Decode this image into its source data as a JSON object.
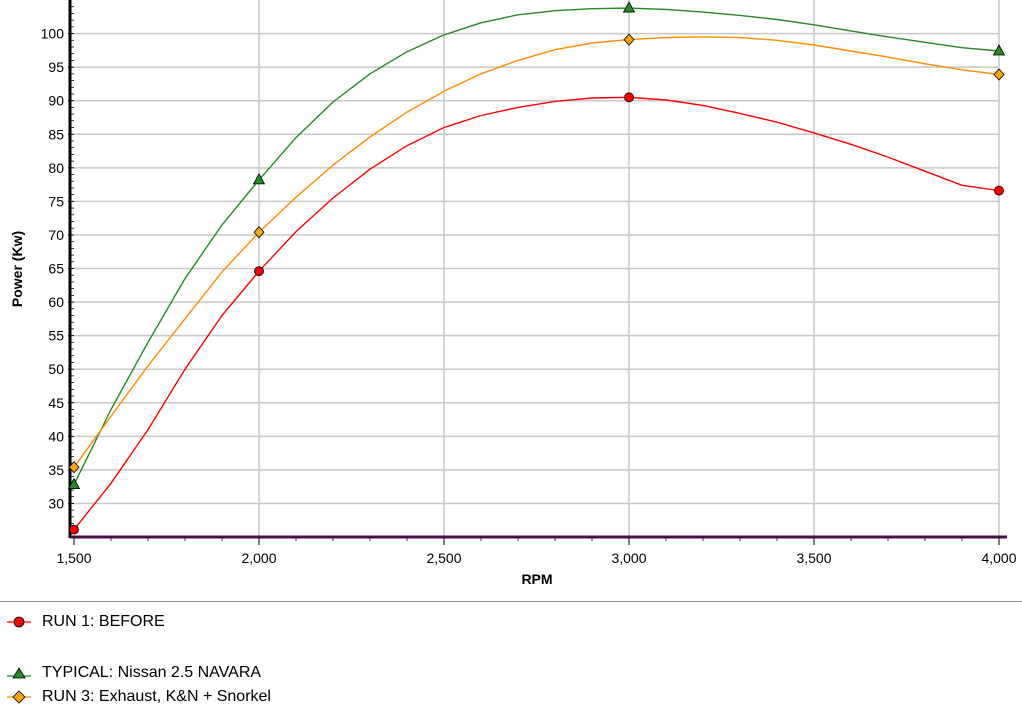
{
  "chart_data": {
    "type": "line",
    "title": "",
    "xlabel": "RPM",
    "ylabel": "Power (Kw)",
    "xlim": [
      1500,
      4000
    ],
    "ylim": [
      25,
      105
    ],
    "x_ticks": [
      1500,
      2000,
      2500,
      3000,
      3500,
      4000
    ],
    "x_tick_labels": [
      "1,500",
      "2,000",
      "2,500",
      "3,000",
      "3,500",
      "4,000"
    ],
    "y_ticks": [
      30,
      35,
      40,
      45,
      50,
      55,
      60,
      65,
      70,
      75,
      80,
      85,
      90,
      95,
      100
    ],
    "y_tick_labels": [
      "30",
      "35",
      "40",
      "45",
      "50",
      "55",
      "60",
      "65",
      "70",
      "75",
      "80",
      "85",
      "90",
      "95",
      "100"
    ],
    "grid": true,
    "legend_position": "bottom",
    "series": [
      {
        "name": "RUN 1: BEFORE",
        "color": "#ff0000",
        "marker": "circle",
        "marker_fill": "#ff0000",
        "x": [
          1500,
          1600,
          1700,
          1800,
          1900,
          2000,
          2100,
          2200,
          2300,
          2400,
          2500,
          2600,
          2700,
          2800,
          2900,
          3000,
          3100,
          3200,
          3300,
          3400,
          3500,
          3600,
          3700,
          3800,
          3900,
          4000
        ],
        "values": [
          26.1,
          33,
          41,
          50,
          58,
          64.6,
          70.5,
          75.5,
          79.8,
          83.3,
          86,
          87.8,
          89,
          89.9,
          90.4,
          90.5,
          90.1,
          89.3,
          88.1,
          86.8,
          85.2,
          83.5,
          81.6,
          79.5,
          77.4,
          76.6
        ],
        "markers_at": [
          1500,
          2000,
          3000,
          4000
        ]
      },
      {
        "name": "TYPICAL: Nissan 2.5 NAVARA",
        "color": "#228b22",
        "marker": "triangle",
        "marker_fill": "#228b22",
        "x": [
          1500,
          1600,
          1700,
          1800,
          1900,
          2000,
          2100,
          2200,
          2300,
          2400,
          2500,
          2600,
          2700,
          2800,
          2900,
          3000,
          3100,
          3200,
          3300,
          3400,
          3500,
          3600,
          3700,
          3800,
          3900,
          4000
        ],
        "values": [
          32.8,
          44,
          54,
          63.5,
          71.5,
          78.2,
          84.5,
          89.8,
          94,
          97.3,
          99.8,
          101.6,
          102.8,
          103.4,
          103.7,
          103.8,
          103.6,
          103.2,
          102.7,
          102.1,
          101.3,
          100.4,
          99.5,
          98.7,
          97.9,
          97.4
        ],
        "markers_at": [
          1500,
          2000,
          3000,
          4000
        ]
      },
      {
        "name": "RUN 3: Exhaust, K&N + Snorkel",
        "color": "#ff8c00",
        "marker": "diamond",
        "marker_fill": "#ffa500",
        "x": [
          1500,
          1600,
          1700,
          1800,
          1900,
          2000,
          2100,
          2200,
          2300,
          2400,
          2500,
          2600,
          2700,
          2800,
          2900,
          3000,
          3100,
          3200,
          3300,
          3400,
          3500,
          3600,
          3700,
          3800,
          3900,
          4000
        ],
        "values": [
          35.4,
          43,
          50.5,
          57.5,
          64.5,
          70.4,
          75.6,
          80.4,
          84.6,
          88.3,
          91.4,
          94,
          96,
          97.6,
          98.6,
          99.1,
          99.4,
          99.5,
          99.4,
          99,
          98.3,
          97.4,
          96.5,
          95.5,
          94.6,
          93.9
        ],
        "markers_at": [
          1500,
          2000,
          3000,
          4000
        ]
      }
    ]
  },
  "legend": {
    "items": [
      {
        "label": "RUN 1: BEFORE"
      },
      {
        "label": "TYPICAL: Nissan 2.5 NAVARA"
      },
      {
        "label": "RUN 3: Exhaust, K&N + Snorkel"
      }
    ]
  }
}
